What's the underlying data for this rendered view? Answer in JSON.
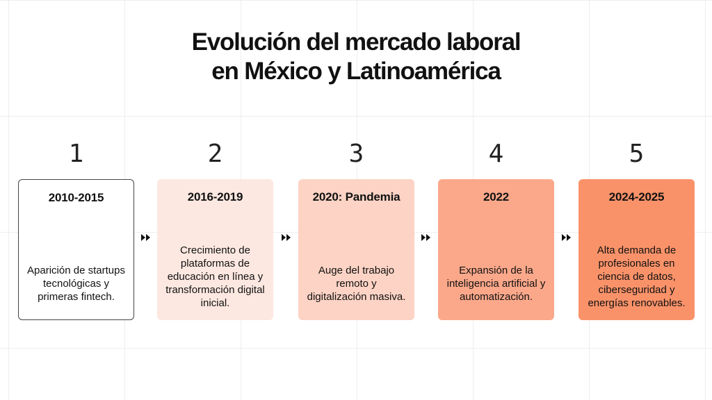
{
  "title": {
    "line1": "Evolución del mercado laboral",
    "line2": "en México y Latinoamérica"
  },
  "steps": [
    {
      "number": "1",
      "period": "2010-2015",
      "description": "Aparición de startups tecnológicas y primeras fintech.",
      "fill": "#ffffff",
      "border": "#444444"
    },
    {
      "number": "2",
      "period": "2016-2019",
      "description": "Crecimiento de plataformas de educación en línea y transformación digital inicial.",
      "fill": "#fde8e1",
      "border": "none"
    },
    {
      "number": "3",
      "period": "2020: Pandemia",
      "description": "Auge del trabajo remoto y digitalización masiva.",
      "fill": "#fcd3c4",
      "border": "none"
    },
    {
      "number": "4",
      "period": "2022",
      "description": "Expansión de la inteligencia artificial y automatización.",
      "fill": "#fba88a",
      "border": "none"
    },
    {
      "number": "5",
      "period": "2024-2025",
      "description": "Alta demanda de profesionales en ciencia de datos, ciberseguridad y energías renovables.",
      "fill": "#fa9269",
      "border": "none"
    }
  ],
  "connector_icon": "double-chevron-right-icon"
}
